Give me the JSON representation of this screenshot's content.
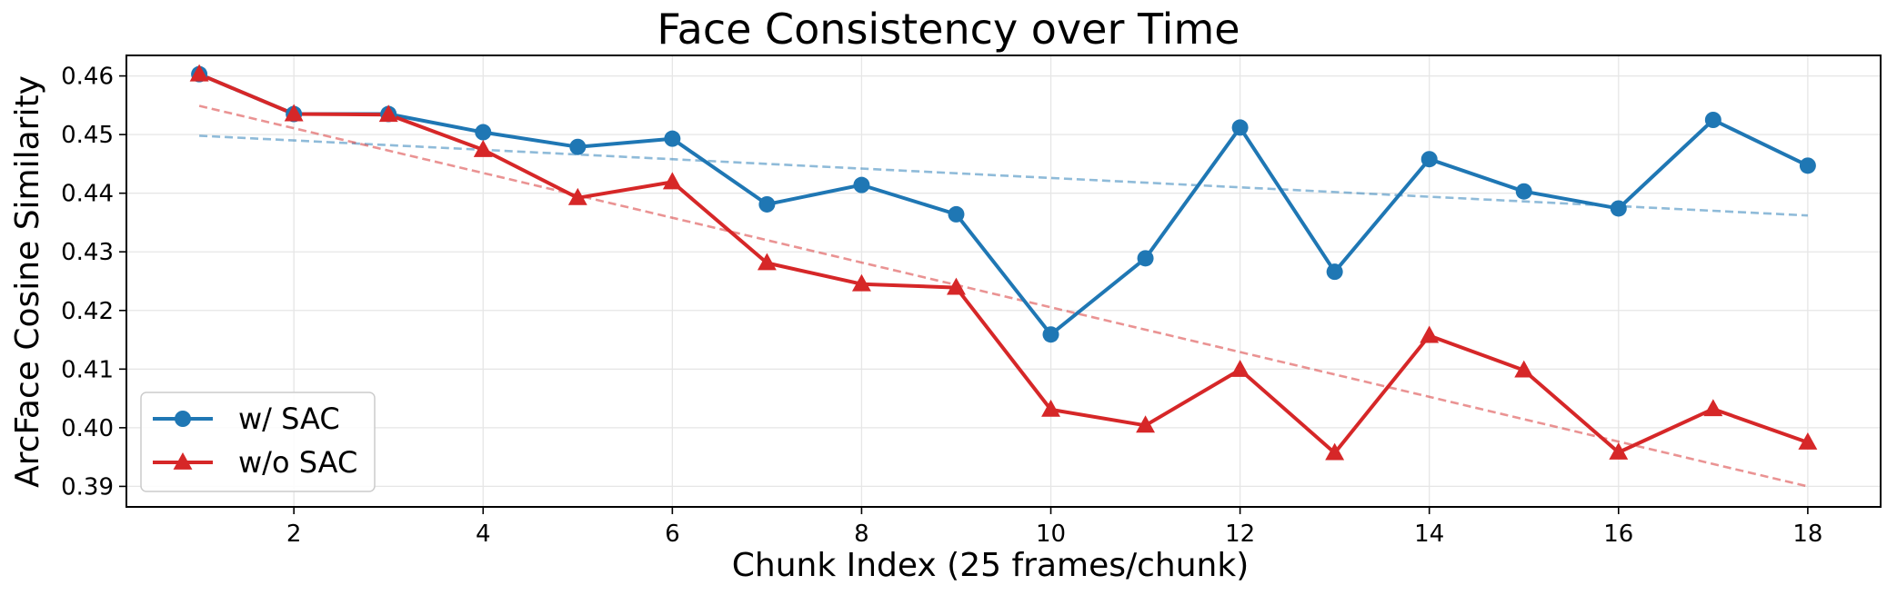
{
  "chart_data": {
    "type": "line",
    "title": "Face Consistency over Time",
    "xlabel": "Chunk Index (25 frames/chunk)",
    "ylabel": "ArcFace Cosine Similarity",
    "x": [
      1,
      2,
      3,
      4,
      5,
      6,
      7,
      8,
      9,
      10,
      11,
      12,
      13,
      14,
      15,
      16,
      17,
      18
    ],
    "xlim": [
      0.23,
      18.77
    ],
    "ylim": [
      0.3865,
      0.4635
    ],
    "xticks": [
      2,
      4,
      6,
      8,
      10,
      12,
      14,
      16,
      18
    ],
    "xtick_labels": [
      "2",
      "4",
      "6",
      "8",
      "10",
      "12",
      "14",
      "16",
      "18"
    ],
    "yticks": [
      0.39,
      0.4,
      0.41,
      0.42,
      0.43,
      0.44,
      0.45,
      0.46
    ],
    "ytick_labels": [
      "0.39",
      "0.40",
      "0.41",
      "0.42",
      "0.43",
      "0.44",
      "0.45",
      "0.46"
    ],
    "grid": true,
    "legend_position": "lower-left",
    "series": [
      {
        "name": "w/ SAC",
        "color": "#1f77b4",
        "marker": "circle",
        "values": [
          0.4603,
          0.4535,
          0.4535,
          0.4504,
          0.4479,
          0.4493,
          0.4381,
          0.4414,
          0.4364,
          0.4159,
          0.4289,
          0.4512,
          0.4266,
          0.4458,
          0.4403,
          0.4374,
          0.4525,
          0.4447
        ],
        "trend": {
          "start": 0.4498,
          "end": 0.4362
        }
      },
      {
        "name": "w/o SAC",
        "color": "#d62728",
        "marker": "triangle",
        "values": [
          0.4603,
          0.4535,
          0.4534,
          0.4474,
          0.4392,
          0.4419,
          0.4281,
          0.4245,
          0.4239,
          0.4031,
          0.4004,
          0.4099,
          0.3957,
          0.4157,
          0.4098,
          0.3958,
          0.4032,
          0.3975
        ],
        "trend": {
          "start": 0.4549,
          "end": 0.39
        }
      }
    ]
  }
}
